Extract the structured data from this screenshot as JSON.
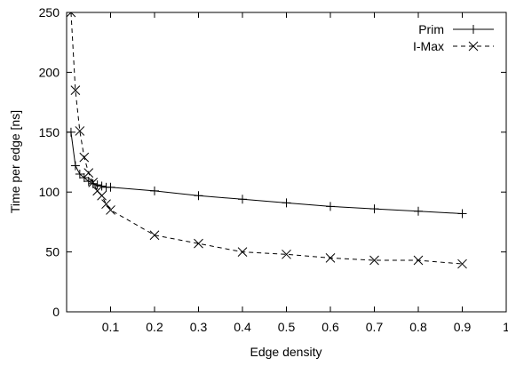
{
  "chart_data": {
    "type": "line",
    "xlabel": "Edge density",
    "ylabel": "Time per edge [ns]",
    "xlim": [
      0,
      1
    ],
    "ylim": [
      0,
      250
    ],
    "x_ticks": [
      "0.1",
      "0.2",
      "0.3",
      "0.4",
      "0.5",
      "0.6",
      "0.7",
      "0.8",
      "0.9",
      "1"
    ],
    "x_tick_values": [
      0.1,
      0.2,
      0.3,
      0.4,
      0.5,
      0.6,
      0.7,
      0.8,
      0.9,
      1
    ],
    "y_ticks": [
      "0",
      "50",
      "100",
      "150",
      "200",
      "250"
    ],
    "y_tick_values": [
      0,
      50,
      100,
      150,
      200,
      250
    ],
    "grid": false,
    "legend_position": "top-right",
    "series": [
      {
        "name": "Prim",
        "marker": "plus",
        "line": "solid",
        "color": "#000000",
        "x": [
          0.01,
          0.02,
          0.03,
          0.04,
          0.05,
          0.06,
          0.07,
          0.08,
          0.09,
          0.1,
          0.2,
          0.3,
          0.4,
          0.5,
          0.6,
          0.7,
          0.8,
          0.9
        ],
        "y": [
          150,
          122,
          115,
          112,
          109,
          107,
          106,
          105,
          104,
          104,
          101,
          97,
          94,
          91,
          88,
          86,
          84,
          82
        ]
      },
      {
        "name": "I-Max",
        "marker": "x",
        "line": "dashed",
        "color": "#000000",
        "x": [
          0.01,
          0.02,
          0.03,
          0.04,
          0.05,
          0.06,
          0.07,
          0.08,
          0.09,
          0.1,
          0.2,
          0.3,
          0.4,
          0.5,
          0.6,
          0.7,
          0.8,
          0.9
        ],
        "y": [
          250,
          185,
          151,
          129,
          116,
          108,
          101,
          97,
          90,
          85,
          64,
          57,
          50,
          48,
          45,
          43,
          43,
          40
        ]
      }
    ]
  }
}
